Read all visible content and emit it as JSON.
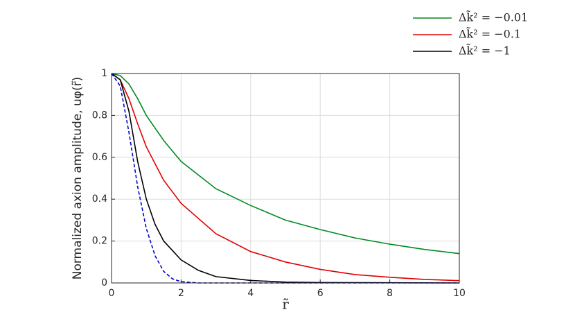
{
  "chart_data": {
    "type": "line",
    "x_label": "r̃",
    "y_label": "Normalized axion amplitude, uφ(r̃)",
    "xlim": [
      0,
      10
    ],
    "xticks": [
      0,
      2,
      4,
      6,
      8,
      10
    ],
    "ylim": [
      0,
      1
    ],
    "yticks": [
      0,
      0.2,
      0.4,
      0.6,
      0.8,
      1
    ],
    "grid": true,
    "legend": "top-right",
    "series": [
      {
        "name": "Δk̃² = −0.01",
        "color": "#008a20",
        "x": [
          0,
          0.25,
          0.5,
          0.75,
          1,
          1.5,
          2,
          3,
          4,
          5,
          6,
          7,
          8,
          9,
          10
        ],
        "values": [
          1,
          0.99,
          0.95,
          0.88,
          0.8,
          0.68,
          0.58,
          0.45,
          0.37,
          0.3,
          0.255,
          0.215,
          0.185,
          0.16,
          0.14
        ]
      },
      {
        "name": "Δk̃² = −0.1",
        "color": "#e00000",
        "x": [
          0,
          0.25,
          0.5,
          0.75,
          1,
          1.5,
          2,
          3,
          4,
          5,
          6,
          7,
          8,
          9,
          10
        ],
        "values": [
          1,
          0.97,
          0.88,
          0.76,
          0.65,
          0.49,
          0.38,
          0.235,
          0.15,
          0.1,
          0.065,
          0.04,
          0.027,
          0.017,
          0.011
        ]
      },
      {
        "name": "Δk̃² = −1",
        "color": "#000000",
        "x": [
          0,
          0.25,
          0.5,
          0.75,
          1,
          1.25,
          1.5,
          2,
          2.5,
          3,
          4,
          5,
          6,
          8,
          10
        ],
        "values": [
          1,
          0.97,
          0.82,
          0.58,
          0.4,
          0.28,
          0.2,
          0.11,
          0.06,
          0.03,
          0.012,
          0.004,
          0.002,
          0.001,
          0
        ]
      },
      {
        "color": "#0000d0",
        "dashed": true,
        "x": [
          0,
          0.25,
          0.5,
          0.75,
          1,
          1.25,
          1.5,
          1.75,
          2,
          2.5,
          10
        ],
        "values": [
          1,
          0.94,
          0.72,
          0.46,
          0.26,
          0.13,
          0.055,
          0.02,
          0.006,
          0,
          0
        ]
      }
    ]
  }
}
